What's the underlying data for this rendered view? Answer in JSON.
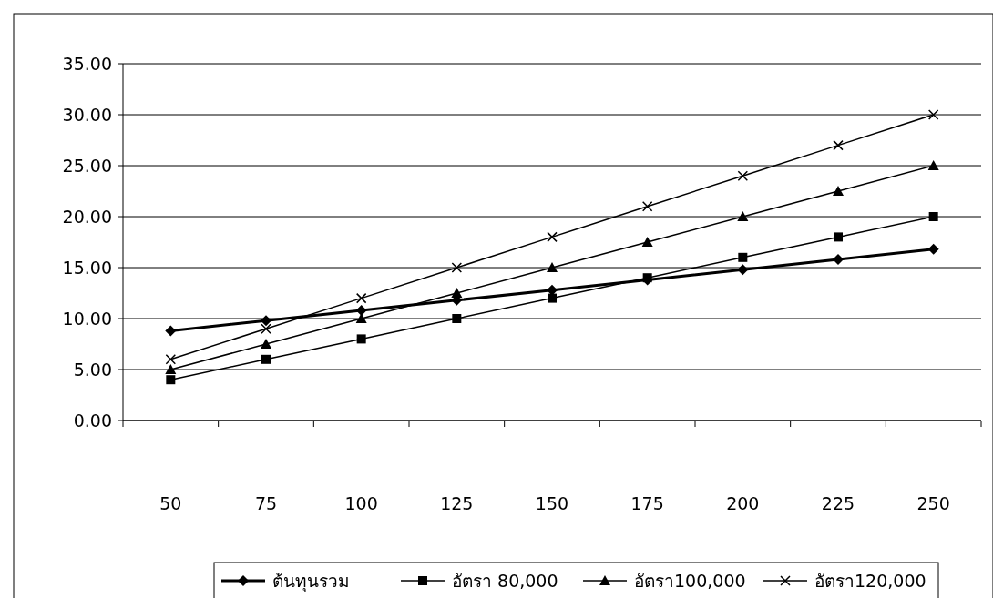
{
  "chart_data": {
    "type": "line",
    "categories": [
      "50",
      "75",
      "100",
      "125",
      "150",
      "175",
      "200",
      "225",
      "250"
    ],
    "series": [
      {
        "name": "ต้นทุนรวม",
        "color": "#000000",
        "marker": "diamond",
        "values": [
          8.8,
          9.8,
          10.8,
          11.8,
          12.8,
          13.8,
          14.8,
          15.8,
          16.8
        ]
      },
      {
        "name": "อัตรา 80,000",
        "color": "#000000",
        "marker": "square",
        "values": [
          4,
          6,
          8,
          10,
          12,
          14,
          16,
          18,
          20
        ]
      },
      {
        "name": "อัตรา100,000",
        "color": "#000000",
        "marker": "triangle",
        "values": [
          5,
          7.5,
          10,
          12.5,
          15,
          17.5,
          20,
          22.5,
          25
        ]
      },
      {
        "name": "อัตรา120,000",
        "color": "#000000",
        "marker": "cross",
        "values": [
          6,
          9,
          12,
          15,
          18,
          21,
          24,
          27,
          30
        ]
      }
    ],
    "ylim": [
      0,
      35
    ],
    "yticks": [
      {
        "value": 0,
        "label": "0.00"
      },
      {
        "value": 5,
        "label": "5.00"
      },
      {
        "value": 10,
        "label": "10.00"
      },
      {
        "value": 15,
        "label": "15.00"
      },
      {
        "value": 20,
        "label": "20.00"
      },
      {
        "value": 25,
        "label": "25.00"
      },
      {
        "value": 30,
        "label": "30.00"
      },
      {
        "value": 35,
        "label": "35.00"
      }
    ],
    "grid": "y",
    "legend": "bottom",
    "line_style": "solid"
  }
}
